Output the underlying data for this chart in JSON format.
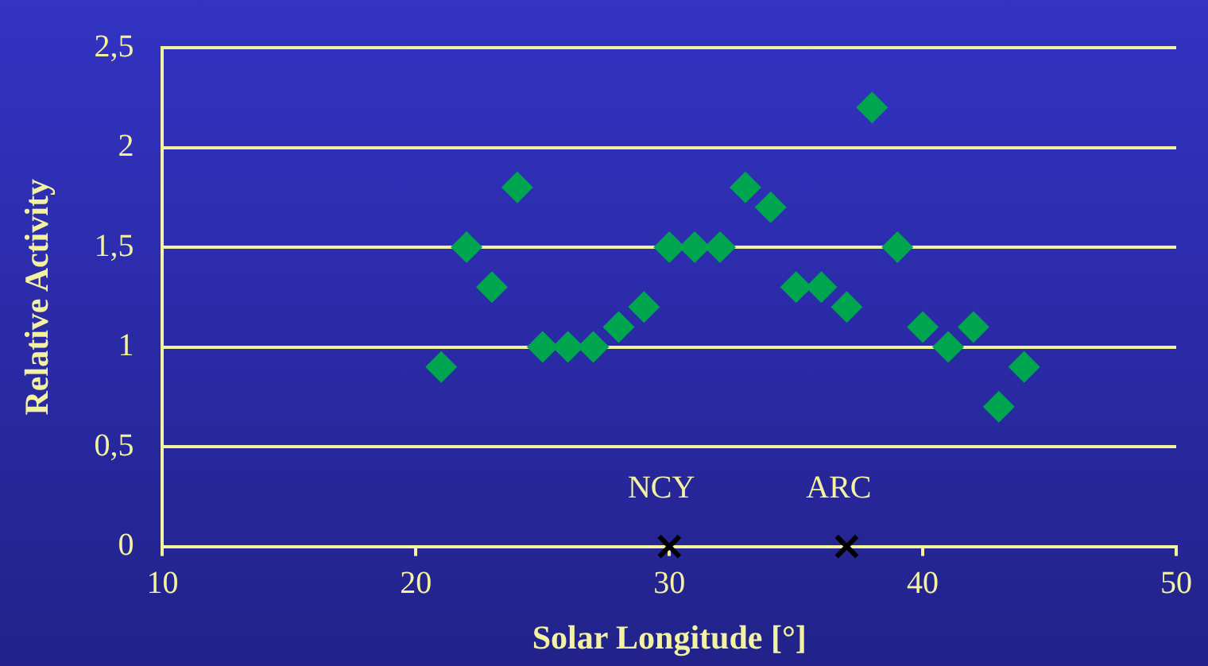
{
  "chart_data": {
    "type": "scatter",
    "xlabel": "Solar Longitude [°]",
    "ylabel": "Relative Activity",
    "xlim": [
      10,
      50
    ],
    "xticks": [
      10,
      20,
      30,
      40,
      50
    ],
    "ylim": [
      0,
      2.5
    ],
    "yticks": [
      {
        "value": 0,
        "label": "0"
      },
      {
        "value": 0.5,
        "label": "0,5"
      },
      {
        "value": 1,
        "label": "1"
      },
      {
        "value": 1.5,
        "label": "1,5"
      },
      {
        "value": 2,
        "label": "2"
      },
      {
        "value": 2.5,
        "label": "2,5"
      }
    ],
    "grid": "y",
    "legend": false,
    "series": [
      {
        "color": "#00a550",
        "marker": "diamond",
        "x": [
          21,
          22,
          23,
          24,
          25,
          26,
          27,
          28,
          29,
          30,
          31,
          32,
          33,
          34,
          35,
          36,
          37,
          38,
          39,
          40,
          41,
          42,
          43,
          44
        ],
        "values": [
          0.9,
          1.5,
          1.3,
          1.8,
          1.0,
          1.0,
          1.0,
          1.1,
          1.2,
          1.5,
          1.5,
          1.5,
          1.8,
          1.7,
          1.3,
          1.3,
          1.2,
          2.2,
          1.5,
          1.1,
          1.0,
          1.1,
          0.7,
          0.9
        ]
      },
      {
        "color": "#000000",
        "marker": "cross",
        "x": [
          30,
          37
        ],
        "values": [
          0,
          0
        ]
      }
    ],
    "annotations": [
      {
        "text": "NCY",
        "x": 30,
        "y": 0
      },
      {
        "text": "ARC",
        "x": 37,
        "y": 0
      }
    ]
  }
}
